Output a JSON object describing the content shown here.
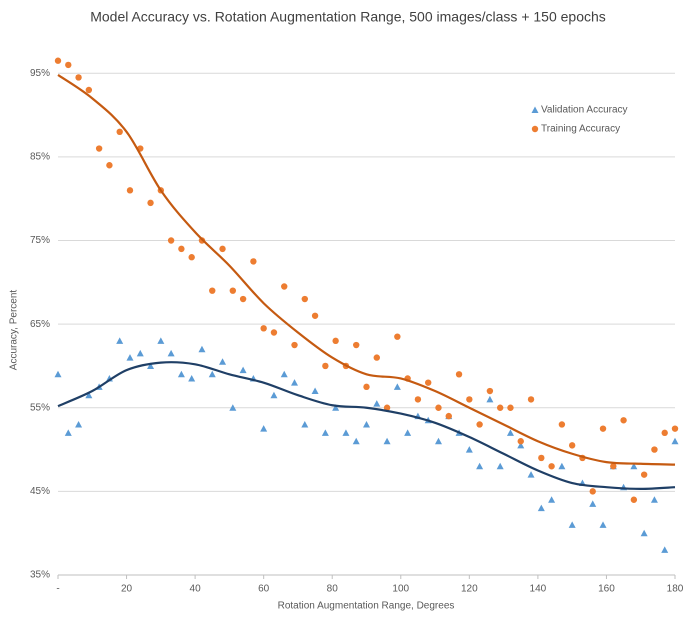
{
  "chart_data": {
    "type": "scatter",
    "title": "Model Accuracy vs. Rotation Augmentation Range, 500 images/class + 150 epochs",
    "x_label": "Rotation Augmentation Range, Degrees",
    "y_label": "Accuracy, Percent",
    "xlim": [
      0,
      180
    ],
    "xticks": [
      {
        "value": 0,
        "label": "-"
      },
      20,
      40,
      60,
      80,
      100,
      120,
      140,
      160,
      180
    ],
    "ylim": [
      35,
      98.5
    ],
    "yticks": [
      {
        "value": 35,
        "label": "35%"
      },
      {
        "value": 45,
        "label": "45%"
      },
      {
        "value": 55,
        "label": "55%"
      },
      {
        "value": 65,
        "label": "65%"
      },
      {
        "value": 75,
        "label": "75%"
      },
      {
        "value": 85,
        "label": "85%"
      },
      {
        "value": 95,
        "label": "95%"
      }
    ],
    "grid": true,
    "legend": "upper right",
    "x": [
      0,
      3,
      6,
      9,
      12,
      15,
      18,
      21,
      24,
      27,
      30,
      33,
      36,
      39,
      42,
      45,
      48,
      51,
      54,
      57,
      60,
      63,
      66,
      69,
      72,
      75,
      78,
      81,
      84,
      87,
      90,
      93,
      96,
      99,
      102,
      105,
      108,
      111,
      114,
      117,
      120,
      123,
      126,
      129,
      132,
      135,
      138,
      141,
      144,
      147,
      150,
      153,
      156,
      159,
      162,
      165,
      168,
      171,
      174,
      177,
      180
    ],
    "trend_x": [
      0,
      10,
      20,
      30,
      40,
      50,
      60,
      70,
      80,
      90,
      100,
      110,
      120,
      130,
      140,
      150,
      160,
      170,
      180
    ],
    "series": [
      {
        "name": "Validation Accuracy",
        "color": "#5b9bd5",
        "marker": "triangle",
        "trend_color": "#1f3f66",
        "values": [
          59,
          52,
          53,
          56.5,
          57.5,
          58.5,
          63,
          61,
          61.5,
          60,
          63,
          61.5,
          59,
          58.5,
          62,
          59,
          60.5,
          55,
          59.5,
          58.5,
          52.5,
          56.5,
          59,
          58,
          53,
          57,
          52,
          55,
          52,
          51,
          53,
          55.5,
          51,
          57.5,
          52,
          54,
          53.5,
          51,
          54,
          52,
          50,
          48,
          56,
          48,
          52,
          50.5,
          47,
          43,
          44,
          48,
          41,
          46,
          43.5,
          41,
          48,
          45.5,
          48,
          40,
          44,
          38,
          51
        ],
        "trend_values": [
          55.2,
          57,
          59.5,
          60.4,
          60.2,
          59,
          58,
          56.5,
          55.3,
          55,
          54.3,
          53.2,
          51.5,
          49.5,
          47.5,
          46,
          45.5,
          45.3,
          45.5
        ]
      },
      {
        "name": "Training Accuracy",
        "color": "#ed7d31",
        "marker": "circle",
        "trend_color": "#c55a11",
        "values": [
          96.5,
          96,
          94.5,
          93,
          86,
          84,
          88,
          81,
          86,
          79.5,
          81,
          75,
          74,
          73,
          75,
          69,
          74,
          69,
          68,
          72.5,
          64.5,
          64,
          69.5,
          62.5,
          68,
          66,
          60,
          63,
          60,
          62.5,
          57.5,
          61,
          55,
          63.5,
          58.5,
          56,
          58,
          55,
          54,
          59,
          56,
          53,
          57,
          55,
          55,
          51,
          56,
          49,
          48,
          53,
          50.5,
          49,
          45,
          52.5,
          48,
          53.5,
          44,
          47,
          50,
          52,
          52.5
        ],
        "trend_values": [
          94.8,
          92,
          88,
          81,
          76,
          72,
          67.5,
          64,
          61,
          59,
          58.5,
          57,
          55,
          53,
          51,
          49.5,
          48.5,
          48.3,
          48.2
        ]
      }
    ]
  }
}
